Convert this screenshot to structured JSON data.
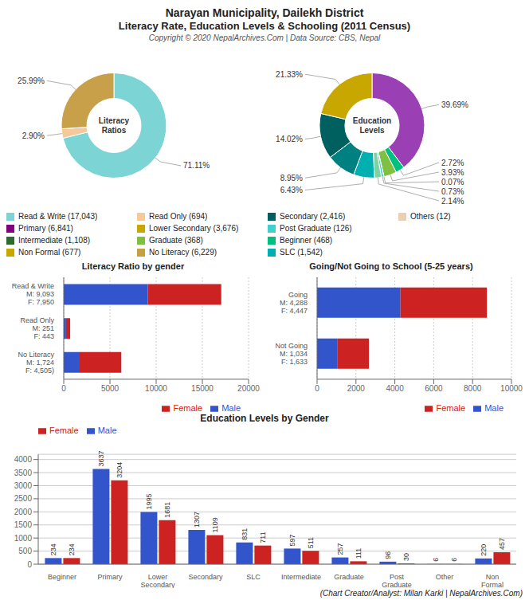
{
  "title": "Narayan Municipality, Dailekh District",
  "subtitle": "Literacy Rate, Education Levels & Schooling (2011 Census)",
  "annotations": [
    "Copyright © 2020 NepalArchives.Com | Data Source: CBS, Nepal",
    "(Chart Creator/Analyst: Milan Karki | NepalArchives.Com)"
  ],
  "chart_data": [
    {
      "type": "pie",
      "title": "Literacy\nRatios",
      "values": [
        71.11,
        2.9,
        25.99
      ],
      "value_labels": [
        "71.11%",
        "2.90%",
        "25.99%"
      ],
      "colors": [
        "#7dd4d4",
        "#f5c99a",
        "#c8a04a"
      ],
      "data_labels": true
    },
    {
      "type": "pie",
      "title": "Education\nLevels",
      "values": [
        39.69,
        2.72,
        3.93,
        0.07,
        0.73,
        2.14,
        6.43,
        8.95,
        14.02,
        21.33
      ],
      "value_labels": [
        "39.69%",
        "2.72%",
        "3.93%",
        "0.07%",
        "0.73%",
        "2.14%",
        "6.43%",
        "8.95%",
        "14.02%",
        "21.33%"
      ],
      "colors": [
        "#9b3fb5",
        "#00c080",
        "#80c040",
        "#c0e0c0",
        "#40d0d0",
        "#80d0a0",
        "#00b0b0",
        "#008080",
        "#006060",
        "#c8a800"
      ],
      "data_labels": true
    },
    {
      "type": "legend",
      "categories": [
        "Read & Write (17,043)",
        "Primary (6,841)",
        "Intermediate (1,108)",
        "Non Formal (677)",
        "Read Only (694)",
        "Lower Secondary (3,676)",
        "Graduate (368)",
        "No Literacy (6,229)",
        "Secondary (2,416)",
        "Post Graduate (126)",
        "Beginner (468)",
        "SLC (1,542)",
        "Others (12)"
      ],
      "colors": [
        "#7dd4d4",
        "#800080",
        "#2d6a2d",
        "#c8a800",
        "#f5c99a",
        "#c8a800",
        "#80c040",
        "#c8a040",
        "#006060",
        "#40d0d0",
        "#00c080",
        "#00b0b0",
        "#e8d0b0"
      ]
    },
    {
      "type": "bar",
      "orientation": "horizontal",
      "stacked": true,
      "title": "Literacy Ratio by gender",
      "categories": [
        "Read & Write\nM: 9,093\nF: 7,950",
        "Read Only\nM: 251\nF: 443",
        "No Literacy\nM: 1,724\nF: 4,505)"
      ],
      "series": [
        {
          "name": "Male",
          "color": "#3355cc",
          "values": [
            9093,
            251,
            1724
          ]
        },
        {
          "name": "Female",
          "color": "#cc2222",
          "values": [
            7950,
            443,
            4505
          ]
        }
      ],
      "xlim": [
        0,
        20000
      ],
      "xticks": [
        0,
        5000,
        10000,
        15000,
        20000
      ],
      "grid": true,
      "legend": "lower right"
    },
    {
      "type": "bar",
      "orientation": "horizontal",
      "stacked": true,
      "title": "Going/Not Going to School (5-25 years)",
      "categories": [
        "Going\nM: 4,288\nF: 4,447",
        "Not Going\nM: 1,034\nF: 1,633"
      ],
      "series": [
        {
          "name": "Male",
          "color": "#3355cc",
          "values": [
            4288,
            1034
          ]
        },
        {
          "name": "Female",
          "color": "#cc2222",
          "values": [
            4447,
            1633
          ]
        }
      ],
      "xlim": [
        0,
        10000
      ],
      "xticks": [
        0,
        2000,
        4000,
        6000,
        8000,
        10000
      ],
      "grid": true,
      "legend": "lower right"
    },
    {
      "type": "bar",
      "title": "Education Levels by Gender",
      "categories": [
        "Beginner",
        "Primary",
        "Lower Secondary",
        "Secondary",
        "SLC",
        "Intermediate",
        "Graduate",
        "Post Graduate",
        "Other",
        "Non Formal"
      ],
      "series": [
        {
          "name": "Male",
          "color": "#3355cc",
          "values": [
            234,
            3637,
            1995,
            1307,
            831,
            597,
            257,
            96,
            6,
            220
          ]
        },
        {
          "name": "Female",
          "color": "#cc2222",
          "values": [
            234,
            3204,
            1681,
            1109,
            711,
            511,
            111,
            30,
            6,
            457
          ]
        }
      ],
      "ylim": [
        0,
        4200
      ],
      "yticks": [
        0,
        500,
        1000,
        1500,
        2000,
        2500,
        3000,
        3500,
        4000
      ],
      "grid": true,
      "legend": "upper left",
      "data_labels": true
    }
  ]
}
